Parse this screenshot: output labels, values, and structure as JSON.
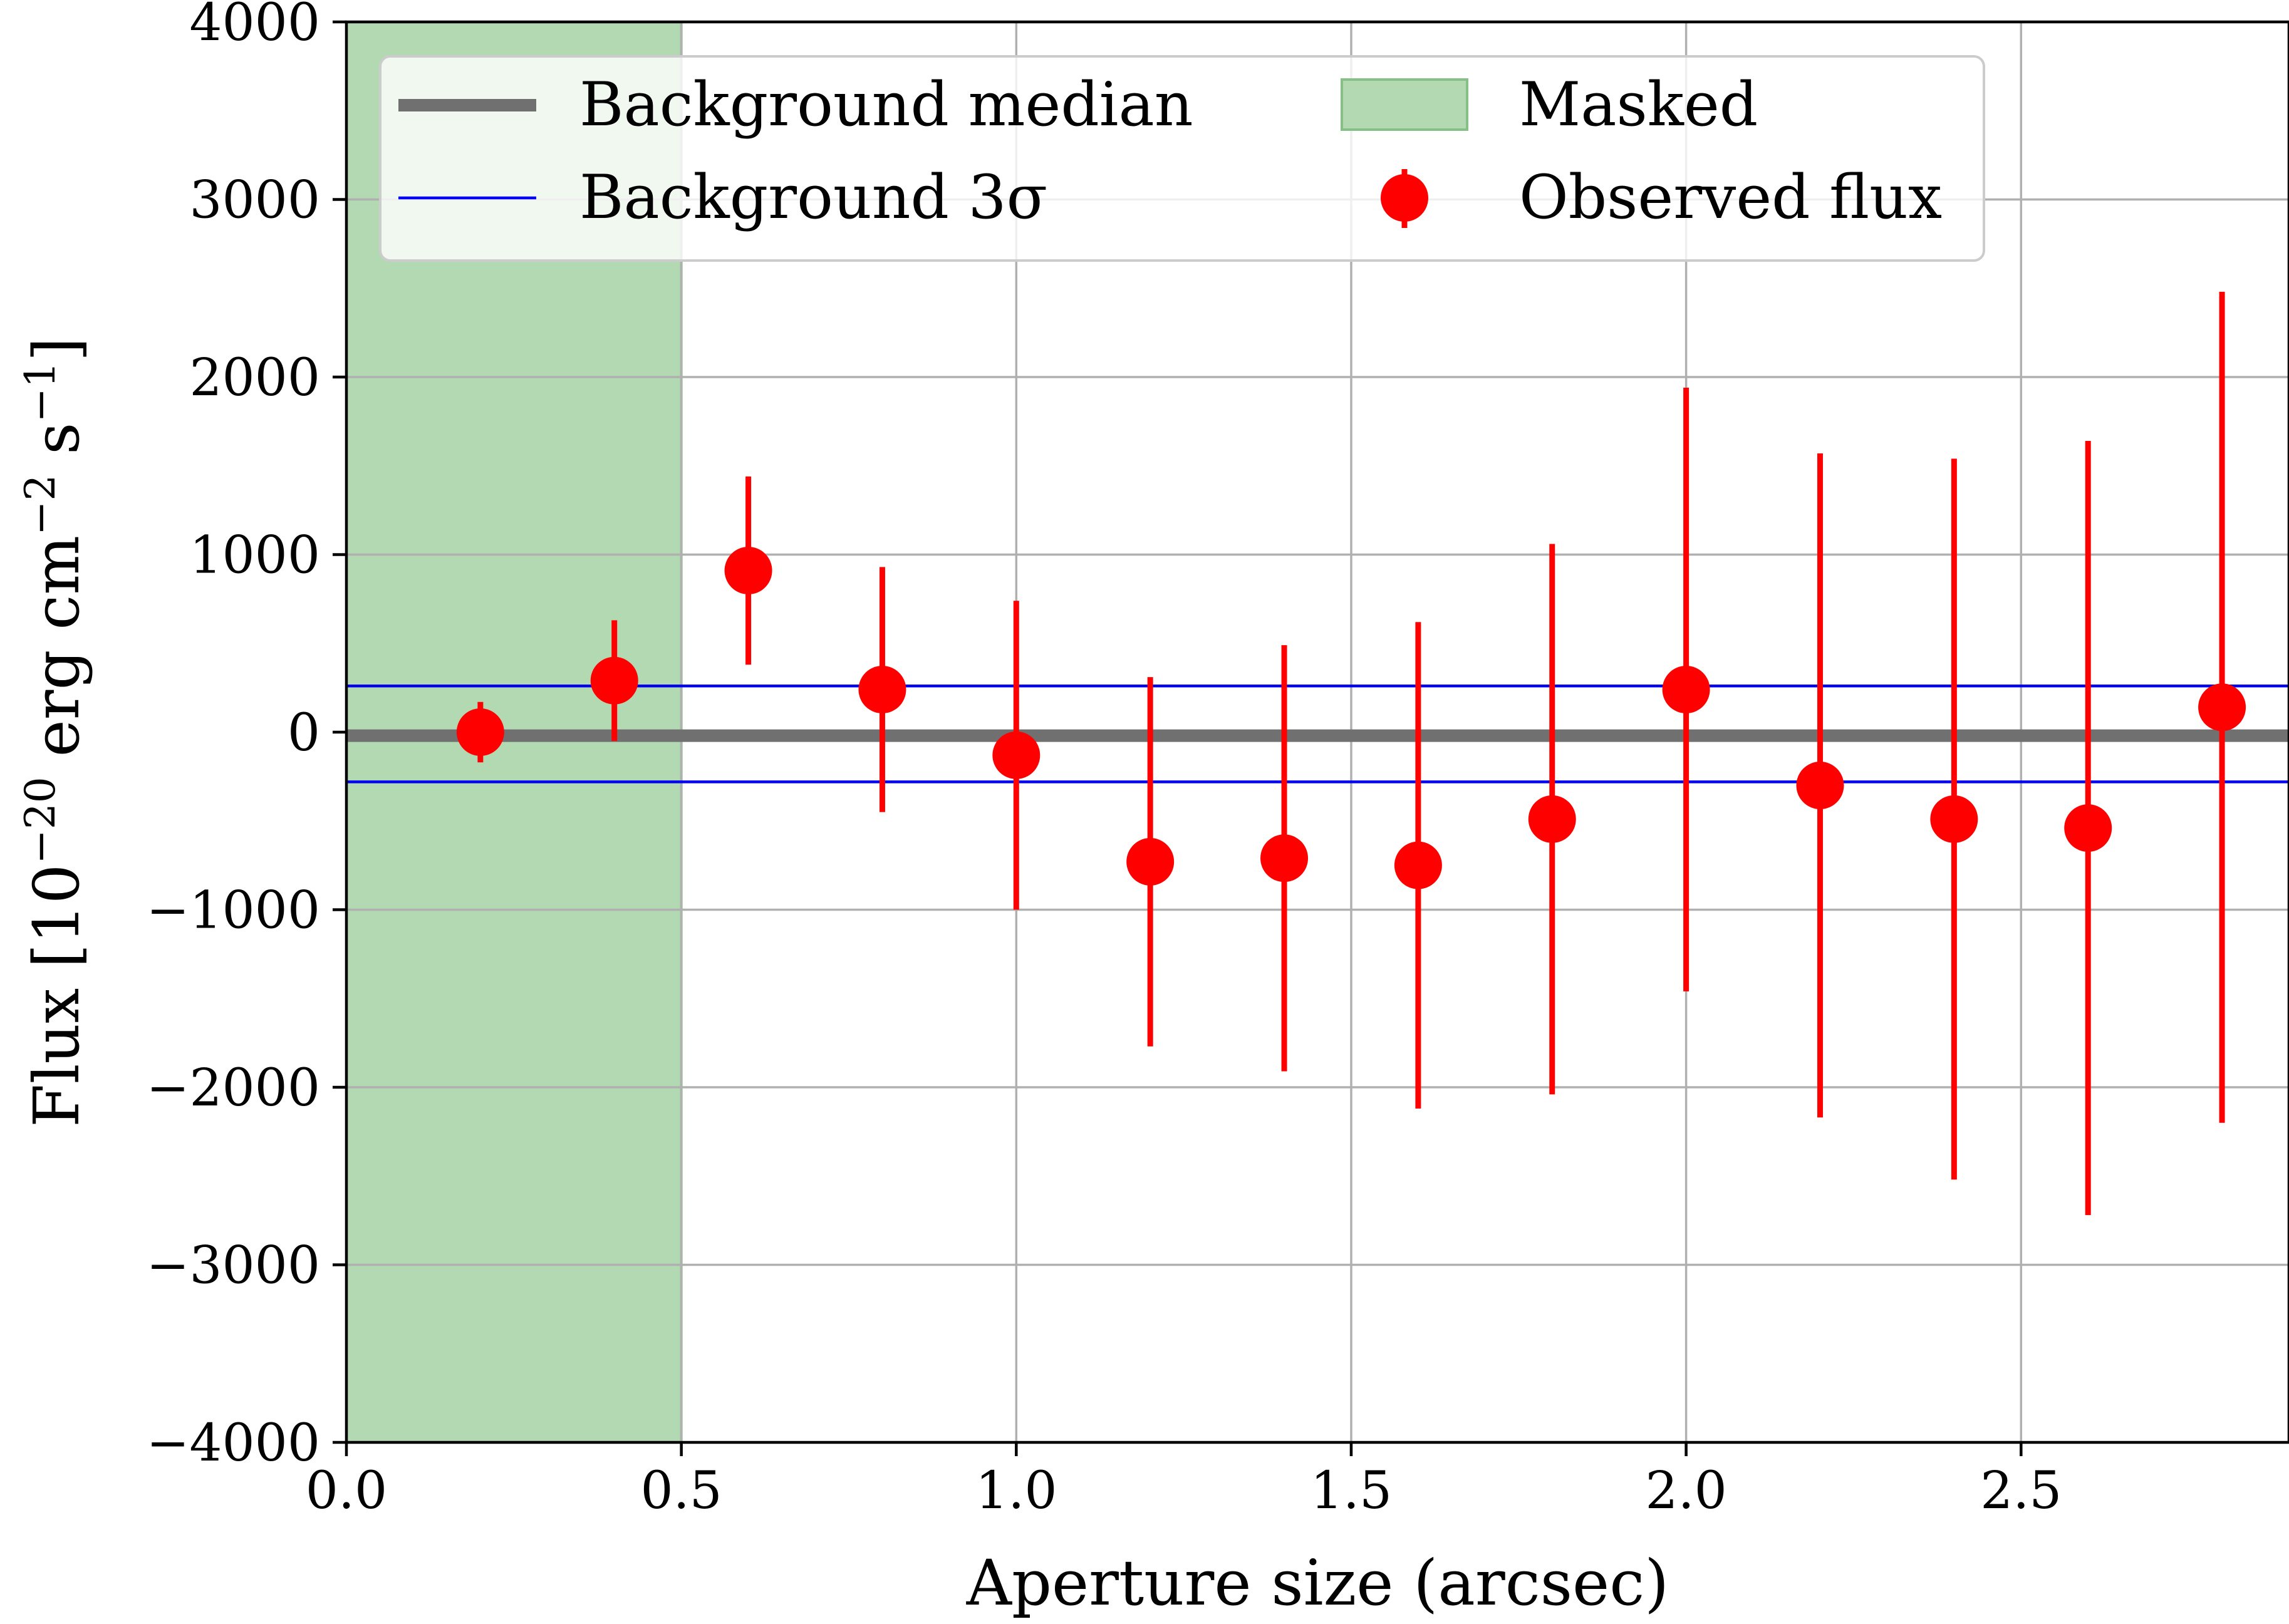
{
  "chart_data": {
    "type": "scatter",
    "x_label": "Aperture size (arcsec)",
    "y_label": "Flux [10^{−20} erg cm^{−2} s^{−1}]",
    "xlim": [
      0.0,
      2.9
    ],
    "ylim": [
      -4000,
      4000
    ],
    "x_ticks": [
      "0.0",
      "0.5",
      "1.0",
      "1.5",
      "2.0",
      "2.5"
    ],
    "y_ticks": [
      "4000",
      "3000",
      "2000",
      "1000",
      "0",
      "−1000",
      "−2000",
      "−3000",
      "−4000"
    ],
    "grid": true,
    "legend_position": "upper-center",
    "legend": {
      "background_median": "Background median",
      "masked": "Masked",
      "background_3sigma": "Background 3σ",
      "observed_flux": "Observed flux"
    },
    "masked_region": [
      0.0,
      0.5
    ],
    "background_median": -20,
    "background_3sigma": [
      260,
      -280
    ],
    "observed_flux": {
      "x": [
        0.2,
        0.4,
        0.6,
        0.8,
        1.0,
        1.2,
        1.4,
        1.6,
        1.8,
        2.0,
        2.2,
        2.4,
        2.6,
        2.8
      ],
      "y": [
        0,
        290,
        910,
        240,
        -130,
        -730,
        -710,
        -750,
        -490,
        240,
        -300,
        -490,
        -540,
        140
      ],
      "err_low": [
        170,
        340,
        530,
        690,
        870,
        1040,
        1200,
        1370,
        1550,
        1700,
        1870,
        2030,
        2180,
        2340
      ],
      "err_high": [
        170,
        340,
        530,
        690,
        870,
        1040,
        1200,
        1370,
        1550,
        1700,
        1870,
        2030,
        2180,
        2340
      ]
    },
    "colors": {
      "observed_flux": "#ff0000",
      "background_median": "#707070",
      "background_3sigma": "#0000ee",
      "masked": "#b3d9b3",
      "masked_edge": "#86c086"
    }
  }
}
